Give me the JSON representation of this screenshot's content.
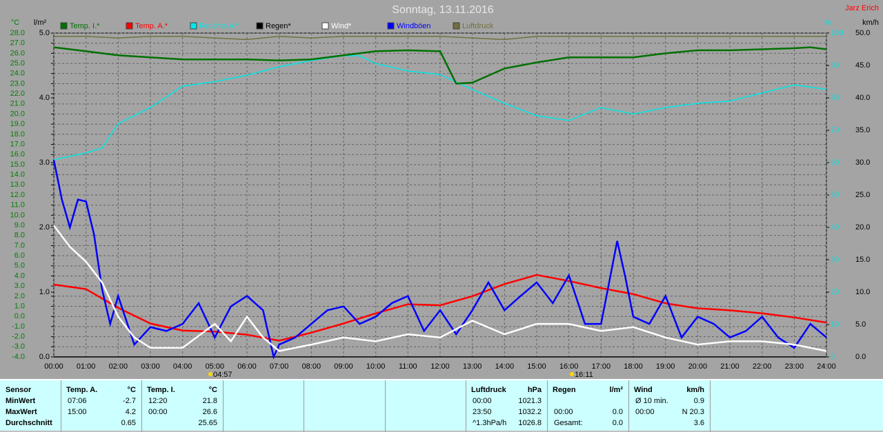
{
  "chart_data": {
    "type": "line",
    "title": "Sonntag, 13.11.2016",
    "author": "Jarz Erich",
    "xlim": [
      0,
      24
    ],
    "xticks": [
      {
        "value": 0,
        "label": "00:00"
      },
      {
        "value": 1,
        "label": "01:00"
      },
      {
        "value": 2,
        "label": "02:00"
      },
      {
        "value": 3,
        "label": "03:00"
      },
      {
        "value": 4,
        "label": "04:00"
      },
      {
        "value": 5,
        "label": "05:00"
      },
      {
        "value": 6,
        "label": "06:00"
      },
      {
        "value": 7,
        "label": "07:00"
      },
      {
        "value": 8,
        "label": "08:00"
      },
      {
        "value": 9,
        "label": "09:00"
      },
      {
        "value": 10,
        "label": "10:00"
      },
      {
        "value": 11,
        "label": "11:00"
      },
      {
        "value": 12,
        "label": "12:00"
      },
      {
        "value": 13,
        "label": "13:00"
      },
      {
        "value": 14,
        "label": "14:00"
      },
      {
        "value": 15,
        "label": "15:00"
      },
      {
        "value": 16,
        "label": "16:00"
      },
      {
        "value": 17,
        "label": "17:00"
      },
      {
        "value": 18,
        "label": "18:00"
      },
      {
        "value": 19,
        "label": "19:00"
      },
      {
        "value": 20,
        "label": "20:00"
      },
      {
        "value": 21,
        "label": "21:00"
      },
      {
        "value": 22,
        "label": "22:00"
      },
      {
        "value": 23,
        "label": "23:00"
      },
      {
        "value": 24,
        "label": "24:00"
      }
    ],
    "y_axes": [
      {
        "label": "°C",
        "color": "#008000",
        "lim": [
          -4,
          28
        ],
        "grid": true,
        "ticks": [
          {
            "value": 28,
            "label": "28.0"
          },
          {
            "value": 27,
            "label": "27.0"
          },
          {
            "value": 26,
            "label": "26.0"
          },
          {
            "value": 25,
            "label": "25.0"
          },
          {
            "value": 24,
            "label": "24.0"
          },
          {
            "value": 23,
            "label": "23.0"
          },
          {
            "value": 22,
            "label": "22.0"
          },
          {
            "value": 21,
            "label": "21.0"
          },
          {
            "value": 20,
            "label": "20.0"
          },
          {
            "value": 19,
            "label": "19.0"
          },
          {
            "value": 18,
            "label": "18.0"
          },
          {
            "value": 17,
            "label": "17.0"
          },
          {
            "value": 16,
            "label": "16.0"
          },
          {
            "value": 15,
            "label": "15.0"
          },
          {
            "value": 14,
            "label": "14.0"
          },
          {
            "value": 13,
            "label": "13.0"
          },
          {
            "value": 12,
            "label": "12.0"
          },
          {
            "value": 11,
            "label": "11.0"
          },
          {
            "value": 10,
            "label": "10.0"
          },
          {
            "value": 9,
            "label": "9.0"
          },
          {
            "value": 8,
            "label": "8.0"
          },
          {
            "value": 7,
            "label": "7.0"
          },
          {
            "value": 6,
            "label": "6.0"
          },
          {
            "value": 5,
            "label": "5.0"
          },
          {
            "value": 4,
            "label": "4.0"
          },
          {
            "value": 3,
            "label": "3.0"
          },
          {
            "value": 2,
            "label": "2.0"
          },
          {
            "value": 1,
            "label": "1.0"
          },
          {
            "value": 0,
            "label": "0.0"
          },
          {
            "value": -1,
            "label": "-1.0"
          },
          {
            "value": -2,
            "label": "-2.0"
          },
          {
            "value": -3,
            "label": "-3.0"
          },
          {
            "value": -4,
            "label": "-4.0"
          }
        ]
      },
      {
        "label": "l/m²",
        "color": "#000000",
        "lim": [
          0,
          5
        ],
        "ticks": [
          {
            "value": 5,
            "label": "5.0"
          },
          {
            "value": 4,
            "label": "4.0"
          },
          {
            "value": 3,
            "label": "3.0"
          },
          {
            "value": 2,
            "label": "2.0"
          },
          {
            "value": 1,
            "label": "1.0"
          },
          {
            "value": 0,
            "label": "0.0"
          }
        ]
      },
      {
        "label": "%",
        "color": "#00e0e0",
        "lim": [
          0,
          100
        ],
        "ticks": [
          100,
          90,
          80,
          70,
          60,
          50,
          40,
          30,
          20,
          10,
          0
        ]
      },
      {
        "label": "km/h",
        "color": "#000000",
        "lim": [
          0,
          50
        ],
        "ticks": [
          {
            "value": 50,
            "label": "50.0"
          },
          {
            "value": 45,
            "label": "45.0"
          },
          {
            "value": 40,
            "label": "40.0"
          },
          {
            "value": 35,
            "label": "35.0"
          },
          {
            "value": 30,
            "label": "30.0"
          },
          {
            "value": 25,
            "label": "25.0"
          },
          {
            "value": 20,
            "label": "20.0"
          },
          {
            "value": 15,
            "label": "15.0"
          },
          {
            "value": 10,
            "label": "10.0"
          },
          {
            "value": 5,
            "label": "5.0"
          },
          {
            "value": 0,
            "label": "0.0"
          }
        ]
      }
    ],
    "series": [
      {
        "name": "Temp. I.*",
        "color": "#007000",
        "axis": 0,
        "x": [
          0,
          1,
          2,
          3,
          4,
          5,
          6,
          7,
          8,
          9,
          10,
          11,
          12,
          12.5,
          13,
          14,
          15,
          16,
          17,
          18,
          19,
          20,
          21,
          22,
          23,
          23.5,
          24
        ],
        "values": [
          26.6,
          26.2,
          25.8,
          25.6,
          25.4,
          25.4,
          25.4,
          25.3,
          25.4,
          25.8,
          26.2,
          26.3,
          26.2,
          23.0,
          23.1,
          24.5,
          25.1,
          25.6,
          25.6,
          25.6,
          26.0,
          26.3,
          26.3,
          26.4,
          26.5,
          26.6,
          26.4
        ]
      },
      {
        "name": "Temp. A.*",
        "color": "#ff0000",
        "axis": 0,
        "x": [
          0,
          1,
          2,
          3,
          4,
          5,
          6,
          7,
          8,
          9,
          10,
          11,
          12,
          13,
          14,
          15,
          16,
          17,
          18,
          19,
          20,
          21,
          22,
          23,
          24
        ],
        "values": [
          3.15,
          2.7,
          0.85,
          -0.7,
          -1.4,
          -1.5,
          -1.8,
          -2.4,
          -1.6,
          -0.7,
          0.3,
          1.2,
          1.1,
          2.0,
          3.2,
          4.1,
          3.5,
          2.8,
          2.2,
          1.3,
          0.8,
          0.6,
          0.3,
          -0.1,
          -0.6
        ]
      },
      {
        "name": "Feuchte A.*",
        "color": "#00e8e8",
        "axis": 2,
        "x": [
          0,
          1,
          1.5,
          2,
          3,
          4,
          5,
          6,
          7,
          8,
          9,
          9.5,
          10,
          11,
          12,
          13,
          14,
          15,
          16,
          17,
          18,
          19,
          20,
          21,
          22,
          23,
          24
        ],
        "values": [
          60.9,
          63,
          64.5,
          72,
          77,
          83.6,
          85,
          87,
          89.6,
          91.5,
          93,
          93,
          90.6,
          88.3,
          87.2,
          82.6,
          78.3,
          74.5,
          73,
          77,
          75,
          77,
          78.3,
          79,
          81.5,
          84,
          82.6
        ]
      },
      {
        "name": "Regen*",
        "color": "#000000",
        "axis": 1,
        "x": [
          0,
          24
        ],
        "values": [
          0,
          0
        ]
      },
      {
        "name": "Wind*",
        "color": "#ffffff",
        "axis": 3,
        "x": [
          0,
          0.5,
          1,
          1.5,
          2,
          2.5,
          3,
          4,
          5,
          5.5,
          6,
          6.5,
          7,
          8,
          9,
          10,
          11,
          12,
          13,
          14,
          15,
          16,
          17,
          18,
          19,
          20,
          21,
          22,
          23,
          24
        ],
        "values": [
          20.3,
          17,
          14.7,
          11.5,
          6.2,
          3,
          1.4,
          1.4,
          5.1,
          2.4,
          6.2,
          3,
          0.9,
          1.9,
          3,
          2.4,
          3.5,
          3,
          5.6,
          3.5,
          5.1,
          5.1,
          4,
          4.6,
          3,
          1.9,
          2.4,
          2.4,
          1.9,
          0.9
        ]
      },
      {
        "name": "Windböen",
        "color": "#0000ff",
        "axis": 3,
        "x": [
          0,
          0.25,
          0.5,
          0.75,
          1,
          1.25,
          1.5,
          1.75,
          2,
          2.5,
          3,
          3.5,
          4,
          4.5,
          5,
          5.5,
          6,
          6.5,
          6.83,
          7,
          7.5,
          8,
          8.5,
          9,
          9.5,
          10,
          10.5,
          11,
          11.5,
          12,
          12.5,
          13,
          13.5,
          14,
          14.5,
          15,
          15.5,
          16,
          16.5,
          17,
          17.5,
          17.75,
          18,
          18.5,
          19,
          19.5,
          20,
          20.5,
          21,
          21.5,
          22,
          22.5,
          23,
          23.5,
          24
        ],
        "values": [
          30.4,
          24.3,
          20,
          24.3,
          24,
          18.9,
          10.4,
          5.1,
          9.4,
          1.9,
          4.6,
          4,
          5.1,
          8.3,
          3,
          7.8,
          9.4,
          7.2,
          0,
          1.9,
          3,
          5.1,
          7.2,
          7.8,
          5.1,
          6.2,
          8.3,
          9.4,
          4,
          7.2,
          3.5,
          7.2,
          11.5,
          7.2,
          9.4,
          11.5,
          8.3,
          12.6,
          5.1,
          5.1,
          17.9,
          12.4,
          6.2,
          5.1,
          9.4,
          3,
          6.2,
          5.1,
          3,
          4,
          6.2,
          3,
          1.4,
          5.1,
          3
        ]
      },
      {
        "name": "Luftdruck",
        "color": "#707040",
        "axis": 2,
        "x": [
          0,
          1,
          2,
          3,
          4,
          5,
          6,
          7,
          8,
          9,
          10,
          11,
          12,
          13,
          14,
          15,
          16,
          17,
          18,
          19,
          20,
          21,
          22,
          23,
          24
        ],
        "values": [
          99,
          99,
          98.5,
          99,
          99,
          98.5,
          98,
          99,
          98.5,
          99,
          99,
          99,
          99,
          98.5,
          98,
          99,
          99,
          99,
          99,
          99,
          99,
          99,
          99,
          99,
          99
        ]
      }
    ],
    "annotations": [
      {
        "text": "04:57",
        "x": 4.95
      },
      {
        "text": "16:11",
        "x": 16.18
      }
    ]
  },
  "table": {
    "sensor": {
      "header": "Sensor",
      "rows": [
        "MinWert",
        "MaxWert",
        "Durchschnitt"
      ]
    },
    "groups": [
      {
        "title": "Temp. A.",
        "unit": "°C",
        "rows": [
          {
            "time": "07:06",
            "value": "-2.7"
          },
          {
            "time": "15:00",
            "value": "4.2"
          },
          {
            "value": "0.65"
          }
        ]
      },
      {
        "title": "Temp. I.",
        "unit": "°C",
        "rows": [
          {
            "time": "12:20",
            "value": "21.8"
          },
          {
            "time": "00:00",
            "value": "26.6"
          },
          {
            "value": "25.65"
          }
        ]
      },
      {
        "title": "Luftdruck",
        "unit": "hPa",
        "rows": [
          {
            "time": "00:00",
            "value": "1021.3"
          },
          {
            "time": "23:50",
            "value": "1032.2"
          },
          {
            "time": "^1.3hPa/h",
            "value": "1026.8"
          }
        ]
      },
      {
        "title": "Regen",
        "unit": "l/m²",
        "rows": [
          {},
          {
            "time": "00:00",
            "value": "0.0"
          },
          {
            "time": "Gesamt:",
            "value": "0.0"
          }
        ]
      },
      {
        "title": "Wind",
        "unit": "km/h",
        "rows": [
          {
            "time": "Ø 10 min.",
            "value": "0.9"
          },
          {
            "time": "00:00",
            "value": "N 20.3"
          },
          {
            "value": "3.6"
          }
        ]
      }
    ]
  }
}
